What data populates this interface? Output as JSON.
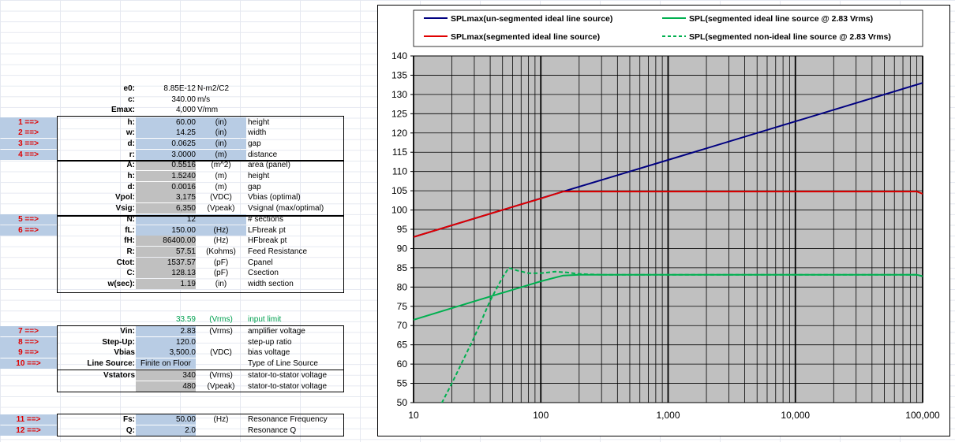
{
  "constants": [
    {
      "label": "e0:",
      "value": "8.85E-12",
      "unit": "N-m2/C2"
    },
    {
      "label": "c:",
      "value": "340.00",
      "unit": "m/s"
    },
    {
      "label": "Emax:",
      "value": "4,000",
      "unit": "V/mm"
    }
  ],
  "rows": [
    {
      "marker": "1 ==>",
      "label": "h:",
      "value": "60.00",
      "unit": "(in)",
      "desc": "height",
      "input": true
    },
    {
      "marker": "2 ==>",
      "label": "w:",
      "value": "14.25",
      "unit": "(in)",
      "desc": "width",
      "input": true
    },
    {
      "marker": "3 ==>",
      "label": "d:",
      "value": "0.0625",
      "unit": "(in)",
      "desc": "gap",
      "input": true
    },
    {
      "marker": "4 ==>",
      "label": "r:",
      "value": "3.0000",
      "unit": "(m)",
      "desc": "distance",
      "input": true
    },
    {
      "marker": "",
      "label": "A:",
      "value": "0.5516",
      "unit": "(m^2)",
      "desc": "area (panel)",
      "input": false
    },
    {
      "marker": "",
      "label": "h:",
      "value": "1.5240",
      "unit": "(m)",
      "desc": "height",
      "input": false
    },
    {
      "marker": "",
      "label": "d:",
      "value": "0.0016",
      "unit": "(m)",
      "desc": "gap",
      "input": false
    },
    {
      "marker": "",
      "label": "Vpol:",
      "value": "3,175",
      "unit": "(VDC)",
      "desc": "Vbias (optimal)",
      "input": false
    },
    {
      "marker": "",
      "label": "Vsig:",
      "value": "6,350",
      "unit": "(Vpeak)",
      "desc": "Vsignal (max/optimal)",
      "input": false
    },
    {
      "marker": "5 ==>",
      "label": "N:",
      "value": "12",
      "unit": "",
      "desc": "# sections",
      "input": true
    },
    {
      "marker": "6 ==>",
      "label": "fL:",
      "value": "150.00",
      "unit": "(Hz)",
      "desc": "LFbreak pt",
      "input": true
    },
    {
      "marker": "",
      "label": "fH:",
      "value": "86400.00",
      "unit": "(Hz)",
      "desc": "HFbreak pt",
      "input": false
    },
    {
      "marker": "",
      "label": "R:",
      "value": "57.51",
      "unit": "(Kohms)",
      "desc": "Feed Resistance",
      "input": false
    },
    {
      "marker": "",
      "label": "Ctot:",
      "value": "1537.57",
      "unit": "(pF)",
      "desc": "Cpanel",
      "input": false
    },
    {
      "marker": "",
      "label": "C:",
      "value": "128.13",
      "unit": "(pF)",
      "desc": "Csection",
      "input": false
    },
    {
      "marker": "",
      "label": "w(sec):",
      "value": "1.19",
      "unit": "(in)",
      "desc": "width section",
      "input": false
    }
  ],
  "input_limit": {
    "value": "33.59",
    "unit": "(Vrms)",
    "desc": "input limit"
  },
  "rows2": [
    {
      "marker": "7 ==>",
      "label": "Vin:",
      "value": "2.83",
      "unit": "(Vrms)",
      "desc": "amplifier voltage"
    },
    {
      "marker": "8 ==>",
      "label": "Step-Up:",
      "value": "120.0",
      "unit": "",
      "desc": "step-up ratio"
    },
    {
      "marker": "9 ==>",
      "label": "Vbias",
      "value": "3,500.0",
      "unit": "(VDC)",
      "desc": "bias voltage"
    },
    {
      "marker": "10 ==>",
      "label": "Line Source:",
      "value": "Finite on Floor",
      "unit": "",
      "desc": "Type of Line Source"
    }
  ],
  "vstators": {
    "label": "Vstators",
    "values": [
      "340",
      "480"
    ],
    "units": [
      "(Vrms)",
      "(Vpeak)"
    ],
    "descs": [
      "stator-to-stator voltage",
      "stator-to-stator voltage"
    ]
  },
  "rows3": [
    {
      "marker": "11 ==>",
      "label": "Fs:",
      "value": "50.00",
      "unit": "(Hz)",
      "desc": "Resonance Frequency"
    },
    {
      "marker": "12 ==>",
      "label": "Q:",
      "value": "2.0",
      "unit": "",
      "desc": "Resonance Q"
    }
  ],
  "chart_data": {
    "type": "line",
    "x_scale": "log",
    "xlim": [
      10,
      100000
    ],
    "ylim": [
      50,
      140
    ],
    "x_ticks": [
      10,
      100,
      1000,
      10000,
      100000
    ],
    "x_tick_labels": [
      "10",
      "100",
      "1,000",
      "10,000",
      "100,000"
    ],
    "y_ticks": [
      50,
      55,
      60,
      65,
      70,
      75,
      80,
      85,
      90,
      95,
      100,
      105,
      110,
      115,
      120,
      125,
      130,
      135,
      140
    ],
    "grid": true,
    "plot_bg": "#c0c0c0",
    "legend_placement": "top",
    "series": [
      {
        "name": "SPLmax(un-segmented ideal line source)",
        "color": "#000080",
        "style": "solid",
        "x": [
          10,
          150,
          1000,
          10000,
          100000
        ],
        "y": [
          93,
          104.8,
          113,
          123,
          133
        ]
      },
      {
        "name": "SPL(segmented ideal line source @ 2.83 Vrms)",
        "color": "#00b050",
        "style": "solid",
        "x": [
          10,
          30,
          60,
          100,
          150,
          200,
          1000,
          10000,
          90000,
          100000
        ],
        "y": [
          71.5,
          76.3,
          79.3,
          81.5,
          83,
          83.2,
          83.2,
          83.2,
          83.2,
          82.8
        ]
      },
      {
        "name": "SPLmax(segmented ideal line source)",
        "color": "#e00000",
        "style": "solid",
        "x": [
          10,
          30,
          60,
          100,
          150,
          200,
          1000,
          10000,
          90000,
          100000
        ],
        "y": [
          93,
          97.8,
          100.8,
          103,
          104.8,
          104.8,
          104.8,
          104.8,
          104.8,
          104.2
        ]
      },
      {
        "name": "SPL(segmented non-ideal line source @ 2.83 Vrms)",
        "color": "#00b050",
        "style": "dashed",
        "x": [
          15,
          20,
          30,
          40,
          50,
          56,
          65,
          80,
          100,
          130,
          160,
          200,
          300,
          1000,
          10000,
          90000,
          100000
        ],
        "y": [
          47,
          55,
          67,
          76.5,
          82.5,
          85,
          84.3,
          83.6,
          83.6,
          84,
          83.8,
          83.4,
          83.2,
          83.2,
          83.2,
          83.2,
          82.8
        ]
      }
    ]
  }
}
